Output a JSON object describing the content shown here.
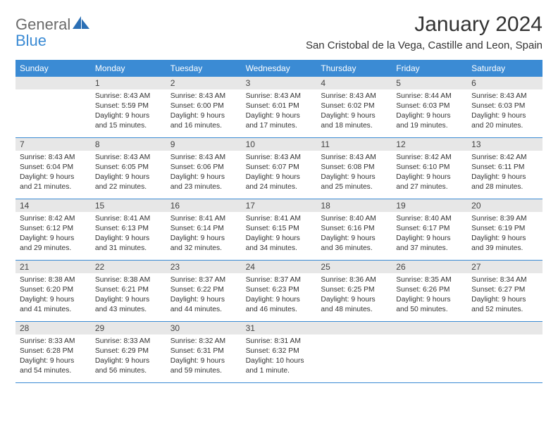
{
  "logo": {
    "general": "General",
    "blue": "Blue"
  },
  "title": "January 2024",
  "location": "San Cristobal de la Vega, Castille and Leon, Spain",
  "colors": {
    "header_bg": "#3b8bd4",
    "header_text": "#ffffff",
    "daynum_bg": "#e7e7e7",
    "row_border": "#3b8bd4",
    "page_bg": "#ffffff",
    "text": "#333333",
    "logo_gray": "#6b6b6b",
    "logo_blue": "#3b8bd4"
  },
  "weekdays": [
    "Sunday",
    "Monday",
    "Tuesday",
    "Wednesday",
    "Thursday",
    "Friday",
    "Saturday"
  ],
  "weeks": [
    [
      null,
      {
        "n": "1",
        "sr": "Sunrise: 8:43 AM",
        "ss": "Sunset: 5:59 PM",
        "d1": "Daylight: 9 hours",
        "d2": "and 15 minutes."
      },
      {
        "n": "2",
        "sr": "Sunrise: 8:43 AM",
        "ss": "Sunset: 6:00 PM",
        "d1": "Daylight: 9 hours",
        "d2": "and 16 minutes."
      },
      {
        "n": "3",
        "sr": "Sunrise: 8:43 AM",
        "ss": "Sunset: 6:01 PM",
        "d1": "Daylight: 9 hours",
        "d2": "and 17 minutes."
      },
      {
        "n": "4",
        "sr": "Sunrise: 8:43 AM",
        "ss": "Sunset: 6:02 PM",
        "d1": "Daylight: 9 hours",
        "d2": "and 18 minutes."
      },
      {
        "n": "5",
        "sr": "Sunrise: 8:44 AM",
        "ss": "Sunset: 6:03 PM",
        "d1": "Daylight: 9 hours",
        "d2": "and 19 minutes."
      },
      {
        "n": "6",
        "sr": "Sunrise: 8:43 AM",
        "ss": "Sunset: 6:03 PM",
        "d1": "Daylight: 9 hours",
        "d2": "and 20 minutes."
      }
    ],
    [
      {
        "n": "7",
        "sr": "Sunrise: 8:43 AM",
        "ss": "Sunset: 6:04 PM",
        "d1": "Daylight: 9 hours",
        "d2": "and 21 minutes."
      },
      {
        "n": "8",
        "sr": "Sunrise: 8:43 AM",
        "ss": "Sunset: 6:05 PM",
        "d1": "Daylight: 9 hours",
        "d2": "and 22 minutes."
      },
      {
        "n": "9",
        "sr": "Sunrise: 8:43 AM",
        "ss": "Sunset: 6:06 PM",
        "d1": "Daylight: 9 hours",
        "d2": "and 23 minutes."
      },
      {
        "n": "10",
        "sr": "Sunrise: 8:43 AM",
        "ss": "Sunset: 6:07 PM",
        "d1": "Daylight: 9 hours",
        "d2": "and 24 minutes."
      },
      {
        "n": "11",
        "sr": "Sunrise: 8:43 AM",
        "ss": "Sunset: 6:08 PM",
        "d1": "Daylight: 9 hours",
        "d2": "and 25 minutes."
      },
      {
        "n": "12",
        "sr": "Sunrise: 8:42 AM",
        "ss": "Sunset: 6:10 PM",
        "d1": "Daylight: 9 hours",
        "d2": "and 27 minutes."
      },
      {
        "n": "13",
        "sr": "Sunrise: 8:42 AM",
        "ss": "Sunset: 6:11 PM",
        "d1": "Daylight: 9 hours",
        "d2": "and 28 minutes."
      }
    ],
    [
      {
        "n": "14",
        "sr": "Sunrise: 8:42 AM",
        "ss": "Sunset: 6:12 PM",
        "d1": "Daylight: 9 hours",
        "d2": "and 29 minutes."
      },
      {
        "n": "15",
        "sr": "Sunrise: 8:41 AM",
        "ss": "Sunset: 6:13 PM",
        "d1": "Daylight: 9 hours",
        "d2": "and 31 minutes."
      },
      {
        "n": "16",
        "sr": "Sunrise: 8:41 AM",
        "ss": "Sunset: 6:14 PM",
        "d1": "Daylight: 9 hours",
        "d2": "and 32 minutes."
      },
      {
        "n": "17",
        "sr": "Sunrise: 8:41 AM",
        "ss": "Sunset: 6:15 PM",
        "d1": "Daylight: 9 hours",
        "d2": "and 34 minutes."
      },
      {
        "n": "18",
        "sr": "Sunrise: 8:40 AM",
        "ss": "Sunset: 6:16 PM",
        "d1": "Daylight: 9 hours",
        "d2": "and 36 minutes."
      },
      {
        "n": "19",
        "sr": "Sunrise: 8:40 AM",
        "ss": "Sunset: 6:17 PM",
        "d1": "Daylight: 9 hours",
        "d2": "and 37 minutes."
      },
      {
        "n": "20",
        "sr": "Sunrise: 8:39 AM",
        "ss": "Sunset: 6:19 PM",
        "d1": "Daylight: 9 hours",
        "d2": "and 39 minutes."
      }
    ],
    [
      {
        "n": "21",
        "sr": "Sunrise: 8:38 AM",
        "ss": "Sunset: 6:20 PM",
        "d1": "Daylight: 9 hours",
        "d2": "and 41 minutes."
      },
      {
        "n": "22",
        "sr": "Sunrise: 8:38 AM",
        "ss": "Sunset: 6:21 PM",
        "d1": "Daylight: 9 hours",
        "d2": "and 43 minutes."
      },
      {
        "n": "23",
        "sr": "Sunrise: 8:37 AM",
        "ss": "Sunset: 6:22 PM",
        "d1": "Daylight: 9 hours",
        "d2": "and 44 minutes."
      },
      {
        "n": "24",
        "sr": "Sunrise: 8:37 AM",
        "ss": "Sunset: 6:23 PM",
        "d1": "Daylight: 9 hours",
        "d2": "and 46 minutes."
      },
      {
        "n": "25",
        "sr": "Sunrise: 8:36 AM",
        "ss": "Sunset: 6:25 PM",
        "d1": "Daylight: 9 hours",
        "d2": "and 48 minutes."
      },
      {
        "n": "26",
        "sr": "Sunrise: 8:35 AM",
        "ss": "Sunset: 6:26 PM",
        "d1": "Daylight: 9 hours",
        "d2": "and 50 minutes."
      },
      {
        "n": "27",
        "sr": "Sunrise: 8:34 AM",
        "ss": "Sunset: 6:27 PM",
        "d1": "Daylight: 9 hours",
        "d2": "and 52 minutes."
      }
    ],
    [
      {
        "n": "28",
        "sr": "Sunrise: 8:33 AM",
        "ss": "Sunset: 6:28 PM",
        "d1": "Daylight: 9 hours",
        "d2": "and 54 minutes."
      },
      {
        "n": "29",
        "sr": "Sunrise: 8:33 AM",
        "ss": "Sunset: 6:29 PM",
        "d1": "Daylight: 9 hours",
        "d2": "and 56 minutes."
      },
      {
        "n": "30",
        "sr": "Sunrise: 8:32 AM",
        "ss": "Sunset: 6:31 PM",
        "d1": "Daylight: 9 hours",
        "d2": "and 59 minutes."
      },
      {
        "n": "31",
        "sr": "Sunrise: 8:31 AM",
        "ss": "Sunset: 6:32 PM",
        "d1": "Daylight: 10 hours",
        "d2": "and 1 minute."
      },
      null,
      null,
      null
    ]
  ]
}
